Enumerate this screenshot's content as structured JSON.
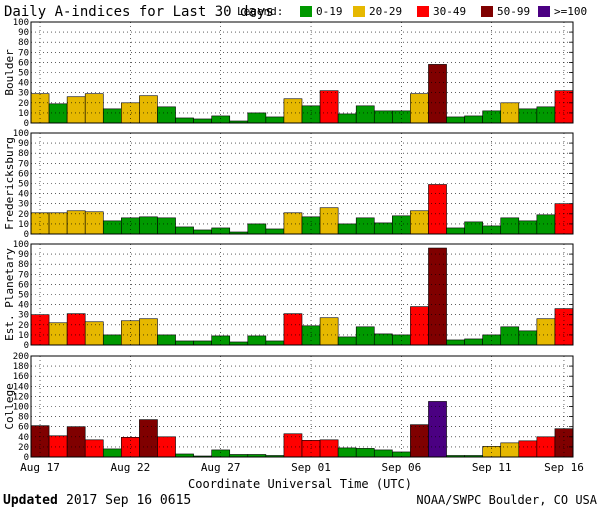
{
  "header": {
    "title": "Daily A-indices for Last 30 days",
    "legend_label": "Legend:",
    "legend": [
      {
        "label": "0-19",
        "color": "#009900"
      },
      {
        "label": "20-29",
        "color": "#e6b800"
      },
      {
        "label": "30-49",
        "color": "#ff0000"
      },
      {
        "label": "50-99",
        "color": "#800000"
      },
      {
        "label": ">=100",
        "color": "#4b0082"
      }
    ]
  },
  "footer": {
    "updated_label": "Updated",
    "updated_value": "2017 Sep 16 0615",
    "source": "NOAA/SWPC Boulder, CO USA"
  },
  "chart_data": {
    "type": "bar",
    "xlabel": "Coordinate Universal Time (UTC)",
    "x_tick_labels": [
      "Aug 17",
      "Aug 22",
      "Aug 27",
      "Sep 01",
      "Sep 06",
      "Sep 11",
      "Sep 16"
    ],
    "x_tick_every_days": 5,
    "days": 30,
    "grid": true,
    "color_thresholds": [
      {
        "min": 0,
        "max": 19,
        "color": "#009900"
      },
      {
        "min": 20,
        "max": 29,
        "color": "#e6b800"
      },
      {
        "min": 30,
        "max": 49,
        "color": "#ff0000"
      },
      {
        "min": 50,
        "max": 99,
        "color": "#800000"
      },
      {
        "min": 100,
        "max": 100000,
        "color": "#4b0082"
      }
    ],
    "panels": [
      {
        "name": "Boulder",
        "ylim": [
          0,
          100
        ],
        "yticks": [
          0,
          10,
          20,
          30,
          40,
          50,
          60,
          70,
          80,
          90,
          100
        ],
        "values": [
          29,
          19,
          26,
          29,
          14,
          20,
          27,
          16,
          5,
          4,
          7,
          2,
          10,
          6,
          24,
          17,
          32,
          9,
          17,
          12,
          12,
          29,
          58,
          6,
          7,
          12,
          20,
          14,
          16,
          32
        ]
      },
      {
        "name": "Fredericksburg",
        "ylim": [
          0,
          100
        ],
        "yticks": [
          0,
          10,
          20,
          30,
          40,
          50,
          60,
          70,
          80,
          90,
          100
        ],
        "values": [
          21,
          21,
          23,
          22,
          13,
          16,
          17,
          16,
          7,
          4,
          6,
          2,
          10,
          5,
          21,
          17,
          26,
          10,
          16,
          11,
          18,
          23,
          49,
          6,
          12,
          8,
          16,
          13,
          19,
          30
        ]
      },
      {
        "name": "Est. Planetary",
        "ylim": [
          0,
          100
        ],
        "yticks": [
          0,
          10,
          20,
          30,
          40,
          50,
          60,
          70,
          80,
          90,
          100
        ],
        "values": [
          30,
          22,
          31,
          23,
          10,
          24,
          26,
          10,
          4,
          4,
          9,
          3,
          9,
          4,
          31,
          19,
          27,
          8,
          18,
          11,
          10,
          38,
          96,
          5,
          6,
          10,
          18,
          14,
          26,
          36
        ]
      },
      {
        "name": "College",
        "ylim": [
          0,
          200
        ],
        "yticks": [
          0,
          20,
          40,
          60,
          80,
          100,
          120,
          140,
          160,
          180,
          200
        ],
        "values": [
          62,
          42,
          60,
          34,
          16,
          39,
          74,
          40,
          6,
          2,
          14,
          5,
          5,
          3,
          46,
          33,
          34,
          18,
          17,
          14,
          10,
          64,
          110,
          3,
          3,
          21,
          28,
          32,
          40,
          56
        ]
      }
    ]
  }
}
